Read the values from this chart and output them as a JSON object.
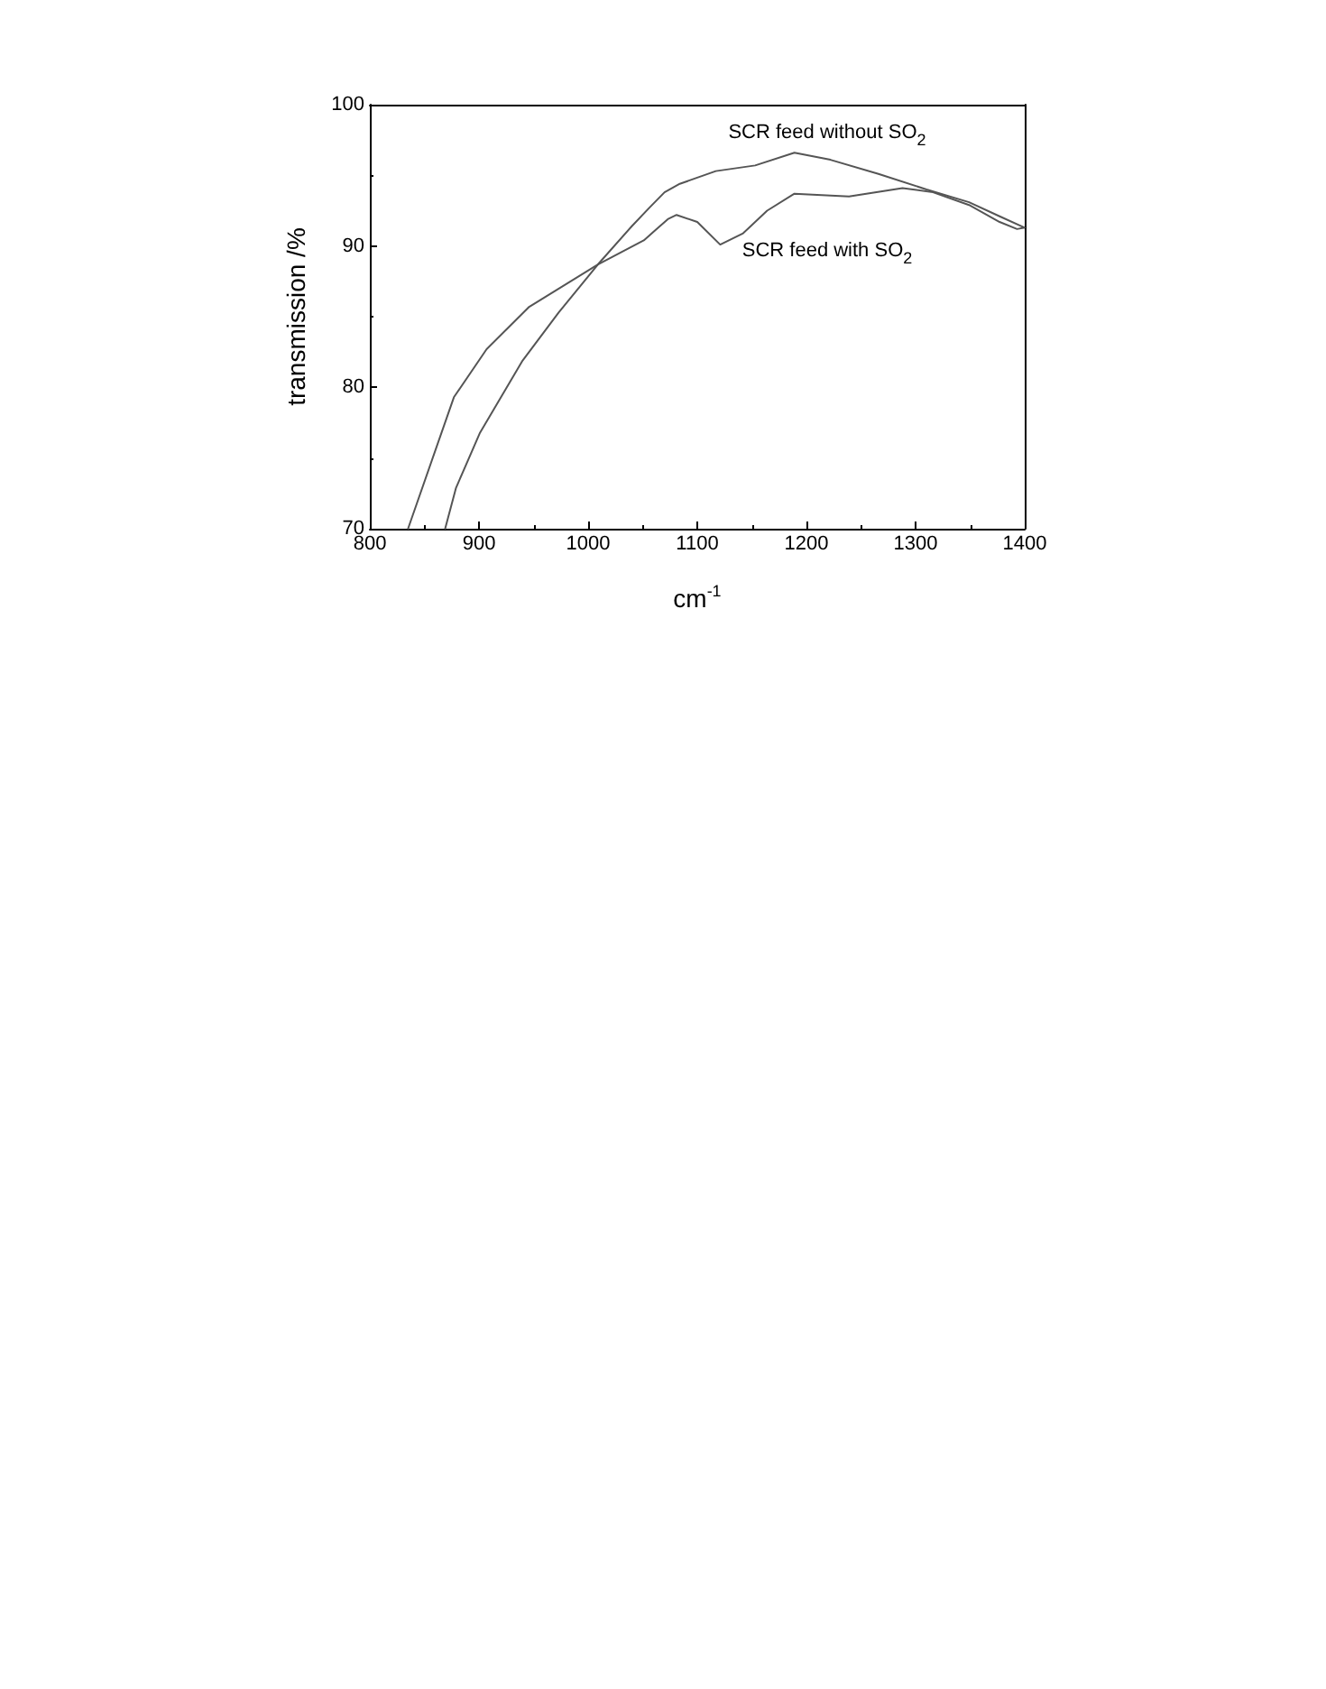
{
  "chart_data": {
    "type": "line",
    "xlabel": "cm$^{-1}$",
    "ylabel": "transmission /%",
    "xlim": [
      800,
      1400
    ],
    "xticks": [
      800,
      900,
      1000,
      1100,
      1200,
      1300,
      1400
    ],
    "ylim": [
      70,
      100
    ],
    "yticks": [
      70,
      80,
      90,
      100
    ],
    "grid": false,
    "marker": "none",
    "line_style": "solid",
    "series": [
      {
        "name": "SCR feed without SO$_{2}$",
        "color": "#555555",
        "x": [
          869,
          879,
          901,
          940,
          973,
          1009,
          1040,
          1056,
          1070,
          1084,
          1117,
          1153,
          1189,
          1222,
          1266,
          1310,
          1349,
          1377,
          1400
        ],
        "values": [
          70,
          72.9,
          76.8,
          81.9,
          85.3,
          88.7,
          91.4,
          92.7,
          93.8,
          94.4,
          95.3,
          95.7,
          96.6,
          96.1,
          95.1,
          94.0,
          93.1,
          92.1,
          91.3
        ]
      },
      {
        "name": "SCR feed with SO$_{2}$",
        "color": "#555555",
        "x": [
          835,
          877,
          907,
          946,
          1009,
          1051,
          1073,
          1081,
          1100,
          1121,
          1142,
          1164,
          1189,
          1239,
          1288,
          1316,
          1349,
          1377,
          1393,
          1400
        ],
        "values": [
          70,
          79.3,
          82.7,
          85.7,
          88.7,
          90.4,
          91.9,
          92.2,
          91.7,
          90.1,
          90.9,
          92.5,
          93.7,
          93.5,
          94.1,
          93.8,
          92.9,
          91.7,
          91.2,
          91.3
        ]
      }
    ]
  }
}
